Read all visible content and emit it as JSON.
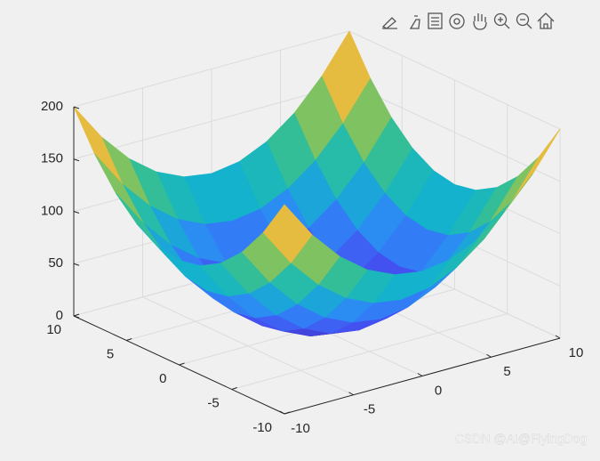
{
  "chart_data": {
    "type": "surface",
    "x": [
      -10,
      -8,
      -6,
      -4,
      -2,
      0,
      2,
      4,
      6,
      8,
      10
    ],
    "y": [
      -10,
      -8,
      -6,
      -4,
      -2,
      0,
      2,
      4,
      6,
      8,
      10
    ],
    "z": [
      [
        200,
        164,
        136,
        116,
        104,
        100,
        104,
        116,
        136,
        164,
        200
      ],
      [
        164,
        128,
        100,
        80,
        68,
        64,
        68,
        80,
        100,
        128,
        164
      ],
      [
        136,
        100,
        72,
        52,
        40,
        36,
        40,
        52,
        72,
        100,
        136
      ],
      [
        116,
        80,
        52,
        32,
        20,
        16,
        20,
        32,
        52,
        80,
        116
      ],
      [
        104,
        68,
        40,
        20,
        8,
        4,
        8,
        20,
        40,
        68,
        104
      ],
      [
        100,
        64,
        36,
        16,
        4,
        0,
        4,
        16,
        36,
        64,
        100
      ],
      [
        104,
        68,
        40,
        20,
        8,
        4,
        8,
        20,
        40,
        68,
        104
      ],
      [
        116,
        80,
        52,
        32,
        20,
        16,
        20,
        32,
        52,
        80,
        116
      ],
      [
        136,
        100,
        72,
        52,
        40,
        36,
        40,
        52,
        72,
        100,
        136
      ],
      [
        164,
        128,
        100,
        80,
        68,
        64,
        68,
        80,
        100,
        128,
        164
      ],
      [
        200,
        164,
        136,
        116,
        104,
        100,
        104,
        116,
        136,
        164,
        200
      ]
    ],
    "xlim": [
      -10,
      10
    ],
    "ylim": [
      -10,
      10
    ],
    "zlim": [
      0,
      200
    ],
    "xticks": [
      -10,
      -5,
      0,
      5,
      10
    ],
    "yticks": [
      -10,
      -5,
      0,
      5,
      10
    ],
    "zticks": [
      0,
      50,
      100,
      150,
      200
    ],
    "grid": true,
    "colormap": [
      "#3e26a8",
      "#4352f2",
      "#2e87f7",
      "#12b5c9",
      "#3cc08a",
      "#a6c34a",
      "#fbb93d",
      "#f9fb0e"
    ]
  },
  "watermark": "CSDN @AI@FlyingDog"
}
